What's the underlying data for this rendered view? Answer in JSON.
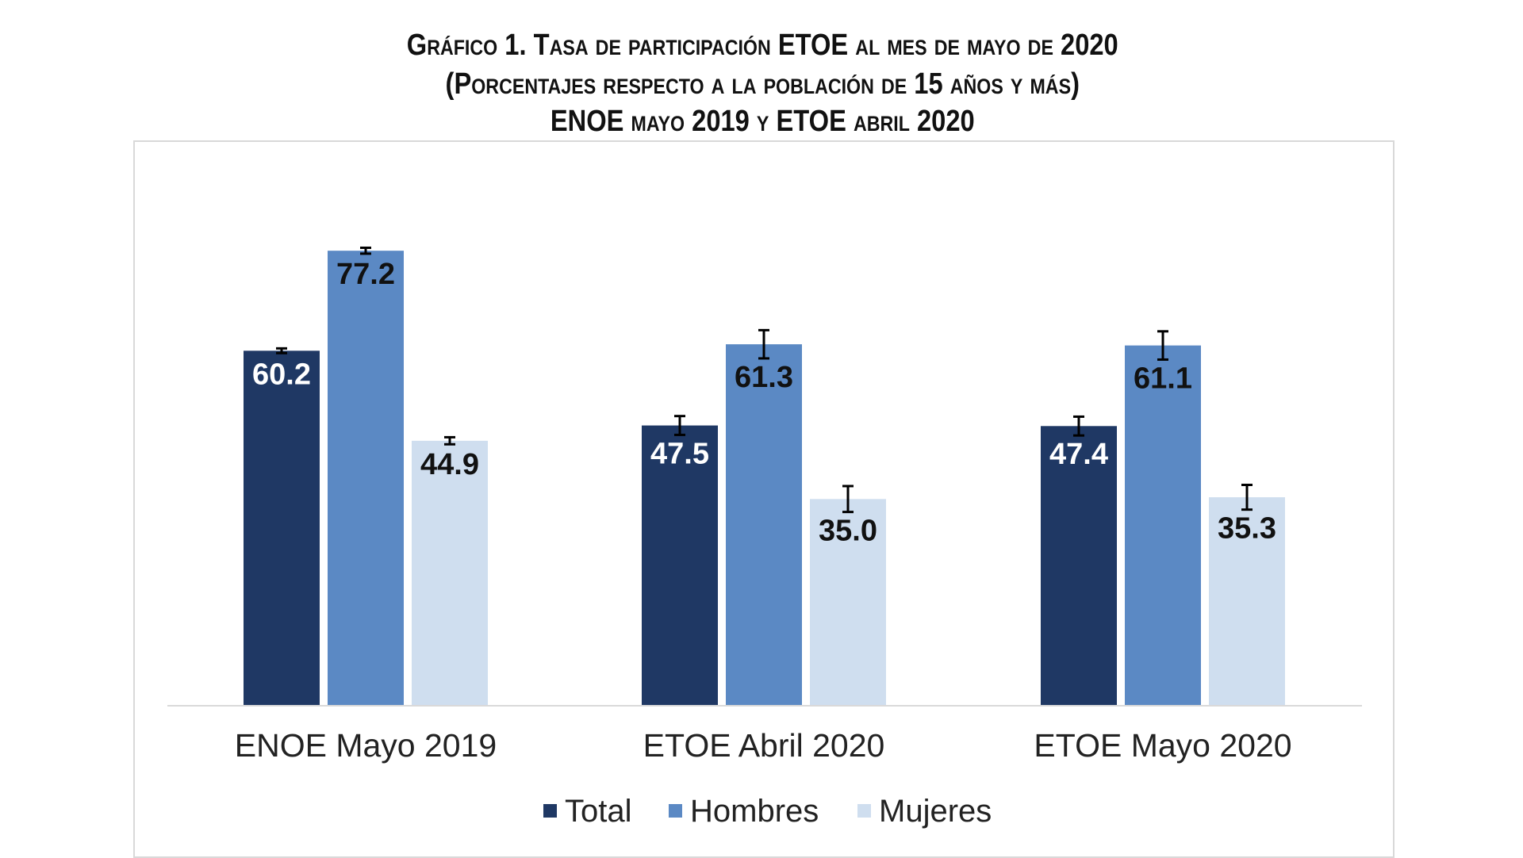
{
  "chart_data": {
    "type": "bar",
    "title": [
      "Gráfico 1. Tasa de participación ETOE al mes de mayo de 2020",
      "(Porcentajes respecto a la población de 15 años y más)",
      "ENOE mayo 2019 y ETOE abril 2020"
    ],
    "categories": [
      "ENOE Mayo 2019",
      "ETOE Abril 2020",
      "ETOE Mayo 2020"
    ],
    "series": [
      {
        "name": "Total",
        "color": "#1f3864",
        "values": [
          60.2,
          47.5,
          47.4
        ],
        "error": [
          0.4,
          1.6,
          1.6
        ],
        "label_color": "#ffffff"
      },
      {
        "name": "Hombres",
        "color": "#5b89c4",
        "values": [
          77.2,
          61.3,
          61.1
        ],
        "error": [
          0.5,
          2.4,
          2.4
        ],
        "label_color": "#111111"
      },
      {
        "name": "Mujeres",
        "color": "#cfdeef",
        "values": [
          44.9,
          35.0,
          35.3
        ],
        "error": [
          0.6,
          2.2,
          2.1
        ],
        "label_color": "#111111"
      }
    ],
    "xlabel": "",
    "ylabel": "",
    "ylim": [
      0,
      90
    ],
    "grid": false,
    "legend": "bottom",
    "error_bars": true
  }
}
